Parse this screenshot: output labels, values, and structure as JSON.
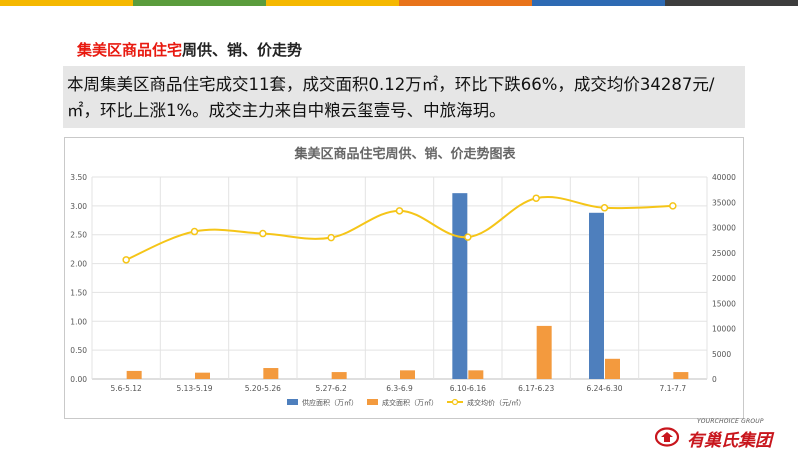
{
  "header": {
    "bar_colors": [
      "#f5b800",
      "#5a9c3c",
      "#f5b800",
      "#e8731a",
      "#2e6ab3",
      "#3d3d3d"
    ],
    "title_accent": "集美区商品住宅",
    "title_rest": "周供、销、价走势"
  },
  "summary": {
    "text": "本周集美区商品住宅成交11套，成交面积0.12万㎡，环比下跌66%，成交均价34287元/㎡，环比上涨1%。成交主力来自中粮云玺壹号、中旅海玥。"
  },
  "chart_data": {
    "type": "bar",
    "title": "集美区商品住宅周供、销、价走势图表",
    "categories": [
      "5.6-5.12",
      "5.13-5.19",
      "5.20-5.26",
      "5.27-6.2",
      "6.3-6.9",
      "6.10-6.16",
      "6.17-6.23",
      "6.24-6.30",
      "7.1-7.7"
    ],
    "left_axis": {
      "ylim": [
        0,
        3.5
      ],
      "ticks": [
        "0.00",
        "0.50",
        "1.00",
        "1.50",
        "2.00",
        "2.50",
        "3.00",
        "3.50"
      ]
    },
    "right_axis": {
      "ylim": [
        0,
        40000
      ],
      "ticks": [
        "0",
        "5000",
        "10000",
        "15000",
        "20000",
        "25000",
        "30000",
        "35000",
        "40000"
      ]
    },
    "series": [
      {
        "name": "供应面积（万㎡）",
        "type": "bar",
        "axis": "left",
        "color": "#4e7fbd",
        "values": [
          0,
          0,
          0,
          0,
          0,
          3.22,
          0,
          2.88,
          0
        ]
      },
      {
        "name": "成交面积（万㎡）",
        "type": "bar",
        "axis": "left",
        "color": "#f39a3e",
        "values": [
          0.14,
          0.11,
          0.19,
          0.12,
          0.15,
          0.15,
          0.92,
          0.35,
          0.12
        ]
      },
      {
        "name": "成交均价（元/㎡）",
        "type": "line",
        "axis": "right",
        "color": "#f5c518",
        "values": [
          23600,
          29200,
          28800,
          28000,
          33300,
          28100,
          35800,
          33900,
          34287
        ]
      }
    ],
    "grid": true,
    "legend": "bottom"
  },
  "logo": {
    "tagline": "YOURCHOICE GROUP",
    "name": "有巢氏集团"
  }
}
